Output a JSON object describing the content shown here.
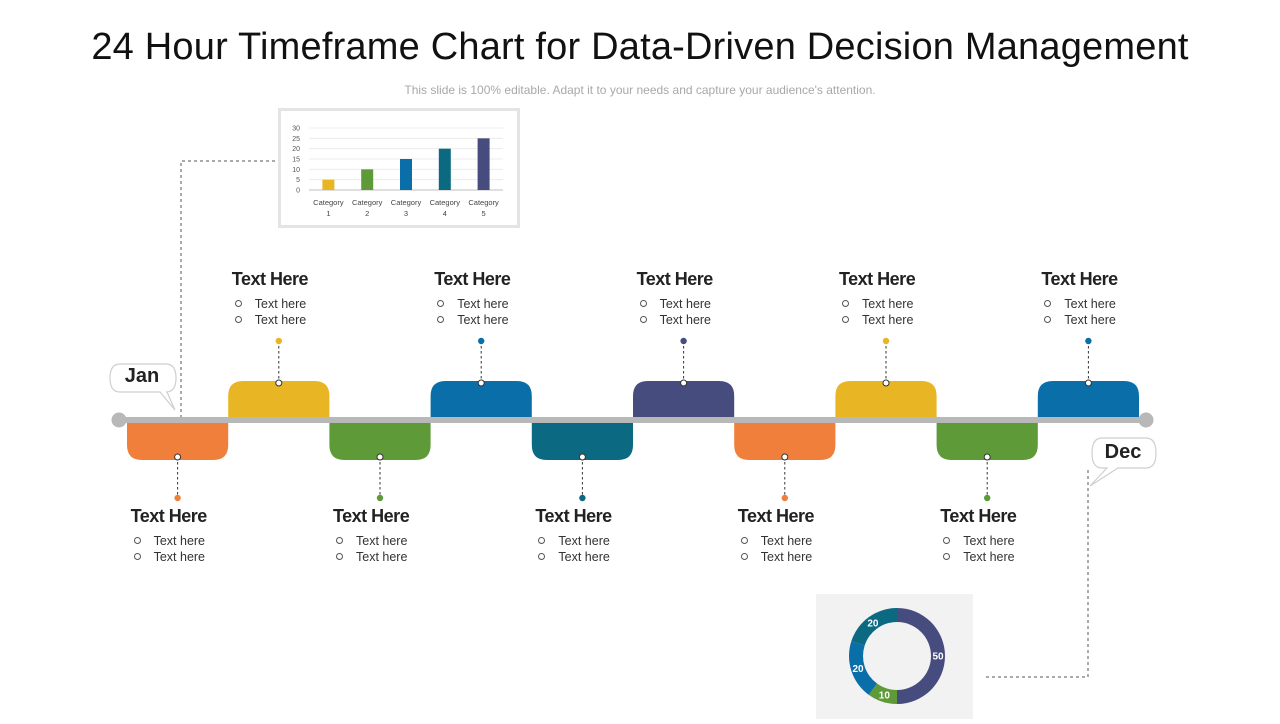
{
  "title": "24 Hour Timeframe Chart for Data-Driven Decision Management",
  "subtitle": "This slide is 100% editable. Adapt it to your needs and capture your audience's attention.",
  "start_label": "Jan",
  "end_label": "Dec",
  "colors": {
    "orange": "#f07f3c",
    "yellow": "#e8b525",
    "green": "#5e9a37",
    "blue": "#0a6fa8",
    "teal": "#0b6a82",
    "navy": "#474c7f",
    "track": "#b8b8b8"
  },
  "timeline": {
    "segments": [
      {
        "position": "below",
        "color": "orange"
      },
      {
        "position": "above",
        "color": "yellow"
      },
      {
        "position": "below",
        "color": "green"
      },
      {
        "position": "above",
        "color": "blue"
      },
      {
        "position": "below",
        "color": "teal"
      },
      {
        "position": "above",
        "color": "navy"
      },
      {
        "position": "below",
        "color": "orange"
      },
      {
        "position": "above",
        "color": "yellow"
      },
      {
        "position": "below",
        "color": "green"
      },
      {
        "position": "above",
        "color": "blue"
      }
    ],
    "top_groups": [
      {
        "heading": "Text Here",
        "items": [
          "Text here",
          "Text here"
        ]
      },
      {
        "heading": "Text Here",
        "items": [
          "Text here",
          "Text here"
        ]
      },
      {
        "heading": "Text Here",
        "items": [
          "Text here",
          "Text here"
        ]
      },
      {
        "heading": "Text Here",
        "items": [
          "Text here",
          "Text here"
        ]
      },
      {
        "heading": "Text Here",
        "items": [
          "Text here",
          "Text here"
        ]
      }
    ],
    "bottom_groups": [
      {
        "heading": "Text Here",
        "items": [
          "Text here",
          "Text here"
        ]
      },
      {
        "heading": "Text Here",
        "items": [
          "Text here",
          "Text here"
        ]
      },
      {
        "heading": "Text Here",
        "items": [
          "Text here",
          "Text here"
        ]
      },
      {
        "heading": "Text Here",
        "items": [
          "Text here",
          "Text here"
        ]
      },
      {
        "heading": "Text Here",
        "items": [
          "Text here",
          "Text here"
        ]
      }
    ]
  },
  "chart_data": [
    {
      "type": "bar",
      "categories": [
        "Category 1",
        "Category 2",
        "Category 3",
        "Category 4",
        "Category 5"
      ],
      "values": [
        5,
        10,
        15,
        20,
        25
      ],
      "bar_colors": [
        "#e8b525",
        "#5e9a37",
        "#0a6fa8",
        "#0b6a82",
        "#474c7f"
      ],
      "yticks": [
        "0",
        "5",
        "10",
        "15",
        "20",
        "25",
        "30"
      ],
      "ylim": [
        0,
        30
      ],
      "grid": true
    },
    {
      "type": "pie",
      "donut": true,
      "slices": [
        {
          "label": "50",
          "value": 50,
          "color": "#474c7f"
        },
        {
          "label": "10",
          "value": 10,
          "color": "#5e9a37"
        },
        {
          "label": "20",
          "value": 20,
          "color": "#0a6fa8"
        },
        {
          "label": "20",
          "value": 20,
          "color": "#0b6a82"
        }
      ]
    }
  ]
}
